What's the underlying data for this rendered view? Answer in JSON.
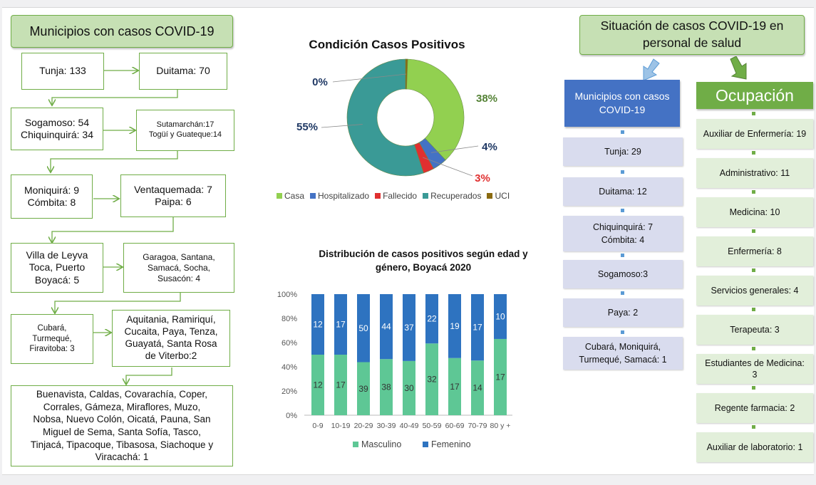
{
  "municipios": {
    "title": "Municipios con casos COVID-19",
    "boxes": [
      "Tunja: 133",
      "Duitama: 70",
      "Sogamoso: 54\nChiquinquirá: 34",
      "Sutamarchán:17\nTogüí y Guateque:14",
      "Moniquirá: 9\nCómbita: 8",
      "Ventaquemada: 7\nPaipa: 6",
      "Villa de Leyva\nToca, Puerto\nBoyacá: 5",
      "Garagoa, Santana,\nSamacá, Socha,\nSusacón: 4",
      "Cubará,\nTurmequé,\nFiravitoba: 3",
      "Aquitania, Ramiriquí,\nCucaita, Paya, Tenza,\nGuayatá, Santa Rosa\nde Viterbo:2",
      "Buenavista, Caldas, Covarachía, Coper,\nCorrales, Gámeza, Miraflores, Muzo,\nNobsa, Nuevo Colón, Oicatá, Pauna, San\nMiguel de Sema, Santa Sofía, Tasco,\nTinjacá, Tipacoque, Tibasosa, Siachoque y\nViracachá: 1"
    ]
  },
  "chart_data": [
    {
      "type": "pie",
      "title": "Condición Casos Positivos",
      "categories": [
        "Casa",
        "Hospitalizado",
        "Fallecido",
        "Recuperados",
        "UCI"
      ],
      "values": [
        38,
        4,
        3,
        55,
        0
      ],
      "labels": [
        "38%",
        "4%",
        "3%",
        "55%",
        "0%"
      ],
      "colors": [
        "#92d050",
        "#4472c4",
        "#e03030",
        "#3a9a96",
        "#8a6a10"
      ],
      "legend": "bottom"
    },
    {
      "type": "bar",
      "stacked": "percent",
      "title": "Distribución de casos positivos según edad y género, Boyacá 2020",
      "categories": [
        "0-9",
        "10-19",
        "20-29",
        "30-39",
        "40-49",
        "50-59",
        "60-69",
        "70-79",
        "80 y +"
      ],
      "series": [
        {
          "name": "Masculino",
          "values": [
            12,
            17,
            39,
            38,
            30,
            32,
            17,
            14,
            17
          ],
          "color": "#5ec795"
        },
        {
          "name": "Femenino",
          "values": [
            12,
            17,
            50,
            44,
            37,
            22,
            19,
            17,
            10
          ],
          "color": "#2e73c0"
        }
      ],
      "yticks": [
        "0%",
        "20%",
        "40%",
        "60%",
        "80%",
        "100%"
      ],
      "ylim": [
        0,
        100
      ],
      "grid": false,
      "legend": "bottom"
    }
  ],
  "salud": {
    "title": "Situación de casos COVID-19 en personal de salud",
    "municipios_header": "Municipios con casos COVID-19",
    "municipios": [
      "Tunja: 29",
      "Duitama: 12",
      "Chiquinquirá: 7\nCómbita: 4",
      "Sogamoso:3",
      "Paya: 2",
      "Cubará, Moniquirá,\nTurmequé, Samacá: 1"
    ],
    "ocupacion_header": "Ocupación",
    "ocupacion": [
      "Auxiliar de Enfermería: 19",
      "Administrativo:  11",
      "Medicina: 10",
      "Enfermería: 8",
      "Servicios generales: 4",
      "Terapeuta: 3",
      "Estudiantes de Medicina:\n3",
      "Regente farmacia: 2",
      "Auxiliar de laboratorio: 1"
    ]
  }
}
